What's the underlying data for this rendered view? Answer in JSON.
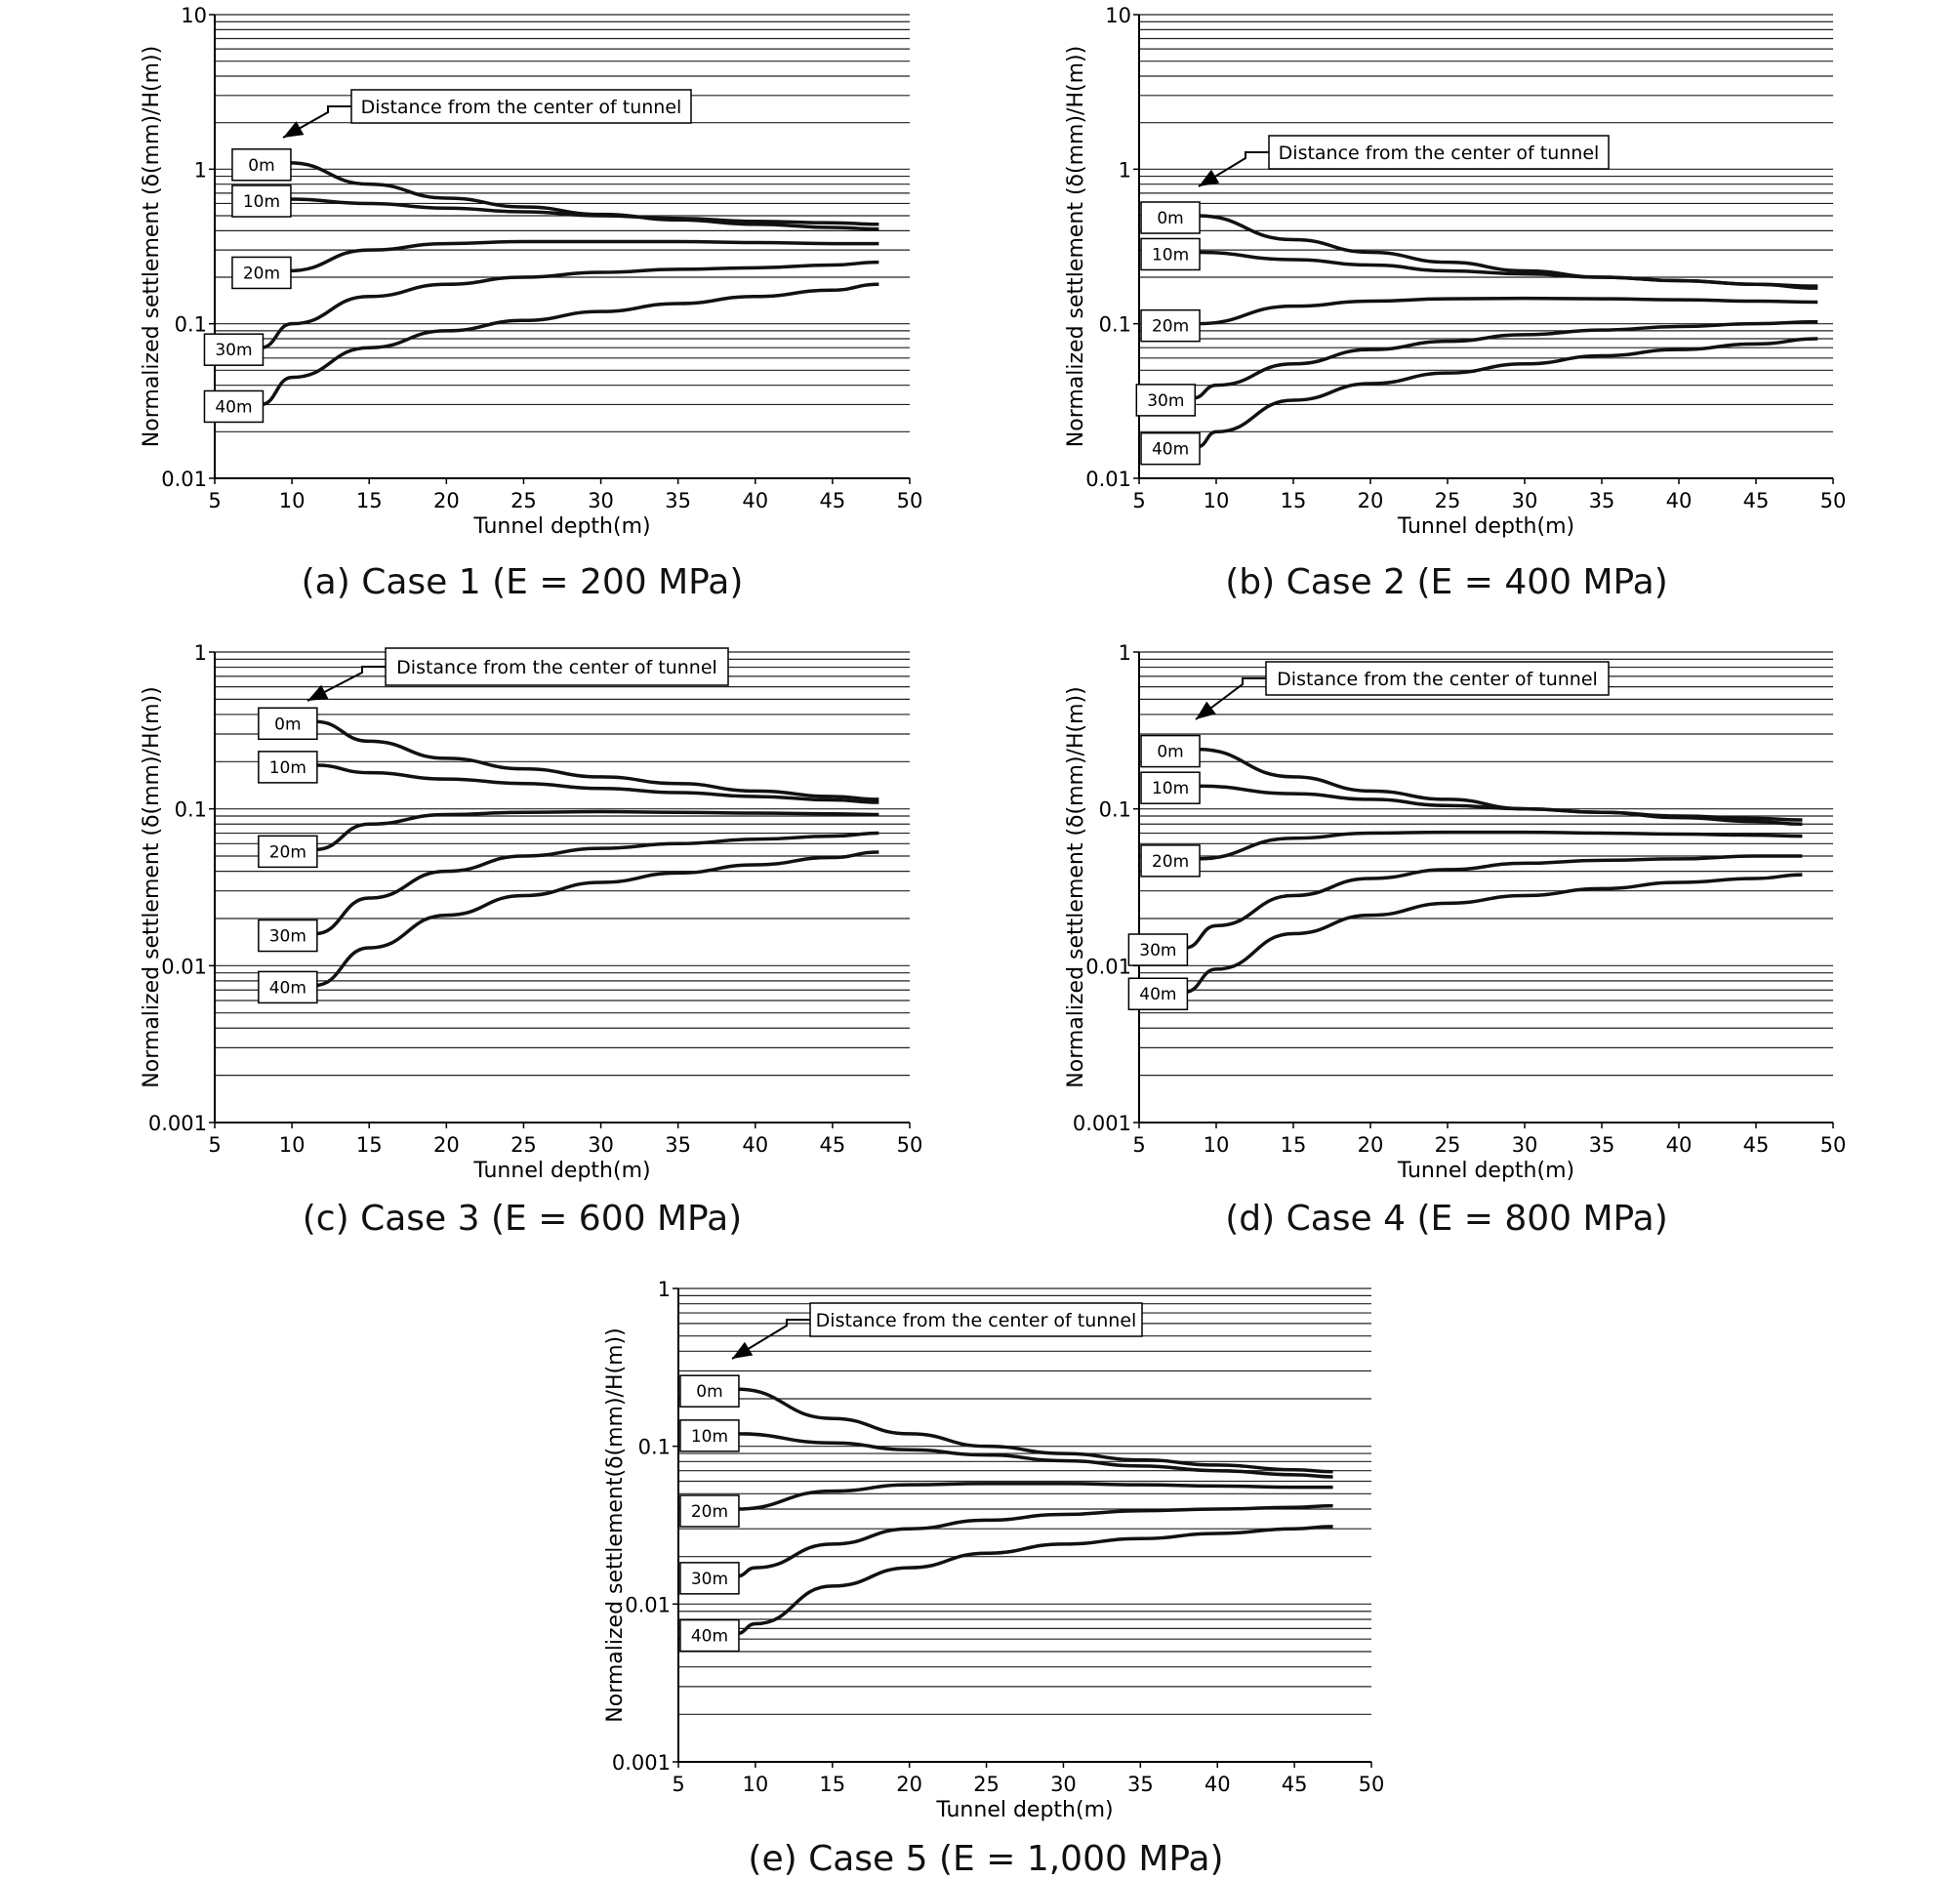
{
  "captions": {
    "a": "(a) Case 1 (E = 200 MPa)",
    "b": "(b) Case 2 (E = 400 MPa)",
    "c": "(c) Case 3 (E = 600 MPa)",
    "d": "(d) Case 4 (E = 800 MPa)",
    "e": "(e) Case 5 (E = 1,000 MPa)"
  },
  "chart_data": [
    {
      "id": "a",
      "type": "line",
      "xlabel": "Tunnel depth(m)",
      "ylabel": "Normalized settlement (δ(mm)/H(m))",
      "annotation": "Distance from the center of tunnel",
      "y_scale": "log",
      "xlim": [
        5,
        50
      ],
      "ylim": [
        0.01,
        10
      ],
      "x_ticks": [
        "5",
        "10",
        "15",
        "20",
        "25",
        "30",
        "35",
        "40",
        "45",
        "50"
      ],
      "y_ticks": [
        "0.01",
        "0.1",
        "1",
        "10"
      ],
      "grid": "horizontal",
      "series": [
        {
          "name": "0m",
          "x": [
            9.8,
            15,
            20,
            25,
            30,
            35,
            40,
            45,
            48
          ],
          "y": [
            1.1,
            0.8,
            0.65,
            0.57,
            0.51,
            0.47,
            0.44,
            0.42,
            0.41
          ]
        },
        {
          "name": "10m",
          "x": [
            9.8,
            15,
            20,
            25,
            30,
            35,
            40,
            45,
            48
          ],
          "y": [
            0.64,
            0.6,
            0.56,
            0.53,
            0.5,
            0.48,
            0.46,
            0.45,
            0.44
          ]
        },
        {
          "name": "20m",
          "x": [
            9.8,
            15,
            20,
            25,
            30,
            35,
            40,
            45,
            48
          ],
          "y": [
            0.22,
            0.3,
            0.33,
            0.34,
            0.34,
            0.34,
            0.335,
            0.33,
            0.33
          ]
        },
        {
          "name": "30m",
          "x": [
            8,
            10,
            15,
            20,
            25,
            30,
            35,
            40,
            45,
            48
          ],
          "y": [
            0.07,
            0.1,
            0.15,
            0.18,
            0.2,
            0.215,
            0.225,
            0.23,
            0.24,
            0.25
          ]
        },
        {
          "name": "40m",
          "x": [
            8,
            10,
            15,
            20,
            25,
            30,
            35,
            40,
            45,
            48
          ],
          "y": [
            0.03,
            0.045,
            0.07,
            0.09,
            0.105,
            0.12,
            0.135,
            0.15,
            0.165,
            0.18
          ]
        }
      ]
    },
    {
      "id": "b",
      "type": "line",
      "xlabel": "Tunnel depth(m)",
      "ylabel": "Normalized settlement (δ(mm)/H(m))",
      "annotation": "Distance from the center of tunnel",
      "y_scale": "log",
      "xlim": [
        5,
        50
      ],
      "ylim": [
        0.01,
        10
      ],
      "x_ticks": [
        "5",
        "10",
        "15",
        "20",
        "25",
        "30",
        "35",
        "40",
        "45",
        "50"
      ],
      "y_ticks": [
        "0.01",
        "0.1",
        "1",
        "10"
      ],
      "grid": "horizontal",
      "series": [
        {
          "name": "0m",
          "x": [
            8.8,
            15,
            20,
            25,
            30,
            35,
            40,
            45,
            49
          ],
          "y": [
            0.5,
            0.35,
            0.29,
            0.25,
            0.22,
            0.2,
            0.19,
            0.18,
            0.17
          ]
        },
        {
          "name": "10m",
          "x": [
            8.8,
            15,
            20,
            25,
            30,
            35,
            40,
            45,
            49
          ],
          "y": [
            0.29,
            0.26,
            0.24,
            0.22,
            0.21,
            0.2,
            0.19,
            0.18,
            0.175
          ]
        },
        {
          "name": "20m",
          "x": [
            8.8,
            15,
            20,
            25,
            30,
            35,
            40,
            45,
            49
          ],
          "y": [
            0.1,
            0.13,
            0.14,
            0.145,
            0.146,
            0.145,
            0.143,
            0.14,
            0.138
          ]
        },
        {
          "name": "30m",
          "x": [
            8.5,
            10,
            15,
            20,
            25,
            30,
            35,
            40,
            45,
            49
          ],
          "y": [
            0.033,
            0.04,
            0.055,
            0.068,
            0.077,
            0.085,
            0.091,
            0.096,
            0.1,
            0.103
          ]
        },
        {
          "name": "40m",
          "x": [
            8.8,
            10,
            15,
            20,
            25,
            30,
            35,
            40,
            45,
            49
          ],
          "y": [
            0.016,
            0.02,
            0.032,
            0.041,
            0.048,
            0.055,
            0.062,
            0.068,
            0.074,
            0.08
          ]
        }
      ]
    },
    {
      "id": "c",
      "type": "line",
      "xlabel": "Tunnel depth(m)",
      "ylabel": "Normalized settlement (δ(mm)/H(m))",
      "annotation": "Distance from the center of tunnel",
      "y_scale": "log",
      "xlim": [
        5,
        50
      ],
      "ylim": [
        0.001,
        1
      ],
      "x_ticks": [
        "5",
        "10",
        "15",
        "20",
        "25",
        "30",
        "35",
        "40",
        "45",
        "50"
      ],
      "y_ticks": [
        "0.001",
        "0.01",
        "0.1",
        "1"
      ],
      "grid": "horizontal",
      "series": [
        {
          "name": "0m",
          "x": [
            11.5,
            15,
            20,
            25,
            30,
            35,
            40,
            45,
            48
          ],
          "y": [
            0.36,
            0.27,
            0.21,
            0.18,
            0.16,
            0.145,
            0.13,
            0.12,
            0.115
          ]
        },
        {
          "name": "10m",
          "x": [
            11.5,
            15,
            20,
            25,
            30,
            35,
            40,
            45,
            48
          ],
          "y": [
            0.19,
            0.17,
            0.155,
            0.145,
            0.135,
            0.127,
            0.12,
            0.114,
            0.11
          ]
        },
        {
          "name": "20m",
          "x": [
            11.5,
            15,
            20,
            25,
            30,
            35,
            40,
            45,
            48
          ],
          "y": [
            0.055,
            0.08,
            0.092,
            0.095,
            0.096,
            0.095,
            0.094,
            0.093,
            0.092
          ]
        },
        {
          "name": "30m",
          "x": [
            11.5,
            15,
            20,
            25,
            30,
            35,
            40,
            45,
            48
          ],
          "y": [
            0.016,
            0.027,
            0.04,
            0.05,
            0.056,
            0.06,
            0.064,
            0.067,
            0.07
          ]
        },
        {
          "name": "40m",
          "x": [
            11.5,
            15,
            20,
            25,
            30,
            35,
            40,
            45,
            48
          ],
          "y": [
            0.0075,
            0.013,
            0.021,
            0.028,
            0.034,
            0.039,
            0.044,
            0.049,
            0.053
          ]
        }
      ]
    },
    {
      "id": "d",
      "type": "line",
      "xlabel": "Tunnel depth(m)",
      "ylabel": "Normalized settlement (δ(mm)/H(m))",
      "annotation": "Distance from the center of tunnel",
      "y_scale": "log",
      "xlim": [
        5,
        50
      ],
      "ylim": [
        0.001,
        1
      ],
      "x_ticks": [
        "5",
        "10",
        "15",
        "20",
        "25",
        "30",
        "35",
        "40",
        "45",
        "50"
      ],
      "y_ticks": [
        "0.001",
        "0.01",
        "0.1",
        "1"
      ],
      "grid": "horizontal",
      "series": [
        {
          "name": "0m",
          "x": [
            8.8,
            15,
            20,
            25,
            30,
            35,
            40,
            45,
            48
          ],
          "y": [
            0.24,
            0.16,
            0.13,
            0.115,
            0.1,
            0.095,
            0.088,
            0.083,
            0.08
          ]
        },
        {
          "name": "10m",
          "x": [
            8.8,
            15,
            20,
            25,
            30,
            35,
            40,
            45,
            48
          ],
          "y": [
            0.14,
            0.125,
            0.115,
            0.105,
            0.1,
            0.095,
            0.09,
            0.087,
            0.085
          ]
        },
        {
          "name": "20m",
          "x": [
            8.8,
            15,
            20,
            25,
            30,
            35,
            40,
            45,
            48
          ],
          "y": [
            0.048,
            0.065,
            0.07,
            0.071,
            0.071,
            0.07,
            0.069,
            0.068,
            0.067
          ]
        },
        {
          "name": "30m",
          "x": [
            8,
            10,
            15,
            20,
            25,
            30,
            35,
            40,
            45,
            48
          ],
          "y": [
            0.013,
            0.018,
            0.028,
            0.036,
            0.041,
            0.045,
            0.047,
            0.048,
            0.05,
            0.05
          ]
        },
        {
          "name": "40m",
          "x": [
            8,
            10,
            15,
            20,
            25,
            30,
            35,
            40,
            45,
            48
          ],
          "y": [
            0.0068,
            0.0095,
            0.016,
            0.021,
            0.025,
            0.028,
            0.031,
            0.034,
            0.036,
            0.038
          ]
        }
      ]
    },
    {
      "id": "e",
      "type": "line",
      "xlabel": "Tunnel depth(m)",
      "ylabel": "Normalized settlement(δ(mm)/H(m))",
      "annotation": "Distance from the center of tunnel",
      "y_scale": "log",
      "xlim": [
        5,
        50
      ],
      "ylim": [
        0.001,
        1
      ],
      "x_ticks": [
        "5",
        "10",
        "15",
        "20",
        "25",
        "30",
        "35",
        "40",
        "45",
        "50"
      ],
      "y_ticks": [
        "0.001",
        "0.01",
        "0.1",
        "1"
      ],
      "grid": "horizontal",
      "series": [
        {
          "name": "0m",
          "x": [
            8.8,
            15,
            20,
            25,
            30,
            35,
            40,
            45,
            47.5
          ],
          "y": [
            0.23,
            0.15,
            0.12,
            0.1,
            0.09,
            0.082,
            0.076,
            0.071,
            0.069
          ]
        },
        {
          "name": "10m",
          "x": [
            8.8,
            15,
            20,
            25,
            30,
            35,
            40,
            45,
            47.5
          ],
          "y": [
            0.12,
            0.105,
            0.095,
            0.088,
            0.081,
            0.075,
            0.07,
            0.066,
            0.064
          ]
        },
        {
          "name": "20m",
          "x": [
            8.8,
            15,
            20,
            25,
            30,
            35,
            40,
            45,
            47.5
          ],
          "y": [
            0.04,
            0.052,
            0.057,
            0.058,
            0.058,
            0.057,
            0.056,
            0.055,
            0.055
          ]
        },
        {
          "name": "30m",
          "x": [
            8.8,
            10,
            15,
            20,
            25,
            30,
            35,
            40,
            45,
            47.5
          ],
          "y": [
            0.015,
            0.017,
            0.024,
            0.03,
            0.034,
            0.037,
            0.039,
            0.04,
            0.041,
            0.042
          ]
        },
        {
          "name": "40m",
          "x": [
            8.8,
            10,
            15,
            20,
            25,
            30,
            35,
            40,
            45,
            47.5
          ],
          "y": [
            0.0065,
            0.0075,
            0.013,
            0.017,
            0.021,
            0.024,
            0.026,
            0.028,
            0.03,
            0.031
          ]
        }
      ]
    }
  ]
}
